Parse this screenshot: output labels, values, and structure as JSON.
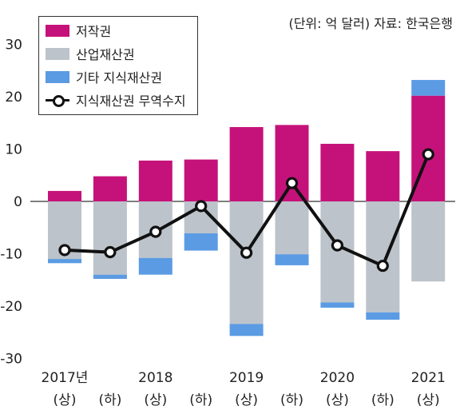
{
  "source_note": "(단위: 억 달러)  자료: 한국은행",
  "colors": {
    "copyright": "#c5127a",
    "industrial": "#bcc3ca",
    "other_ip": "#5b9be3",
    "balance": "#111111"
  },
  "chart_data": {
    "type": "bar",
    "stacked": true,
    "title": "",
    "xlabel": "",
    "ylabel": "",
    "ylim": [
      -30,
      30
    ],
    "yticks": [
      30,
      20,
      10,
      0,
      -10,
      -20,
      -30
    ],
    "grid": false,
    "legend_position": "top-left",
    "categories": [
      "2017년 (상)",
      "(하)",
      "2018 (상)",
      "(하)",
      "2019 (상)",
      "(하)",
      "2020 (상)",
      "(하)",
      "2021 (상)"
    ],
    "year_labels": [
      "2017년",
      "",
      "2018",
      "",
      "2019",
      "",
      "2020",
      "",
      "2021"
    ],
    "half_labels": [
      "(상)",
      "(하)",
      "(상)",
      "(하)",
      "(상)",
      "(하)",
      "(상)",
      "(하)",
      "(상)"
    ],
    "series": [
      {
        "name": "저작권",
        "key": "copyright",
        "values": [
          2.0,
          4.8,
          7.8,
          8.0,
          14.2,
          14.6,
          11.0,
          9.6,
          20.2
        ]
      },
      {
        "name": "산업재산권",
        "key": "industrial",
        "values": [
          -11.0,
          -14.0,
          -10.8,
          -6.1,
          -23.4,
          -10.1,
          -19.3,
          -21.2,
          -15.3
        ]
      },
      {
        "name": "기타 지식재산권",
        "key": "other_ip",
        "values": [
          -0.8,
          -0.8,
          -3.2,
          -3.3,
          -2.3,
          -2.1,
          -1.0,
          -1.4,
          3.0
        ]
      }
    ],
    "line_series": {
      "name": "지식재산권 무역수지",
      "values": [
        -9.3,
        -9.7,
        -5.8,
        -0.9,
        -9.8,
        3.5,
        -8.4,
        -12.3,
        9.0
      ]
    }
  }
}
